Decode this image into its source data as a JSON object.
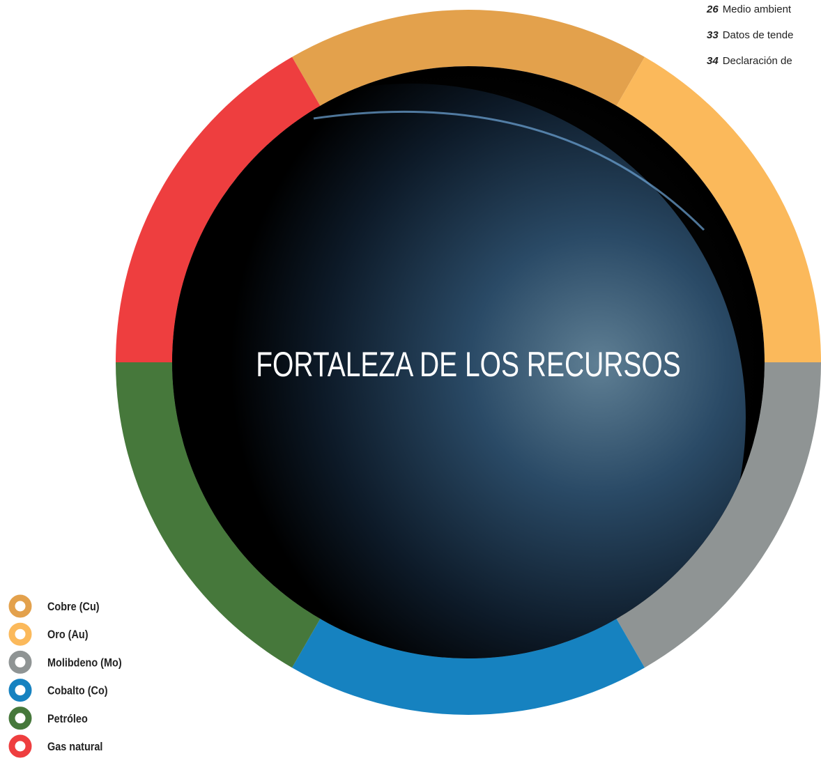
{
  "toc": [
    {
      "page": "26",
      "label": "Medio ambient"
    },
    {
      "page": "33",
      "label": "Datos de tende"
    },
    {
      "page": "34",
      "label": "Declaración de"
    }
  ],
  "title": "FORTALEZA DE LOS RECURSOS",
  "legend": [
    {
      "label": "Cobre  (Cu)",
      "color": "#e3a14c"
    },
    {
      "label": "Oro (Au)",
      "color": "#fbb95b"
    },
    {
      "label": "Molibdeno (Mo)",
      "color": "#8f9494"
    },
    {
      "label": "Cobalto (Co)",
      "color": "#1682c0"
    },
    {
      "label": "Petróleo",
      "color": "#46783b"
    },
    {
      "label": "Gas natural",
      "color": "#ee3e3f"
    }
  ]
}
